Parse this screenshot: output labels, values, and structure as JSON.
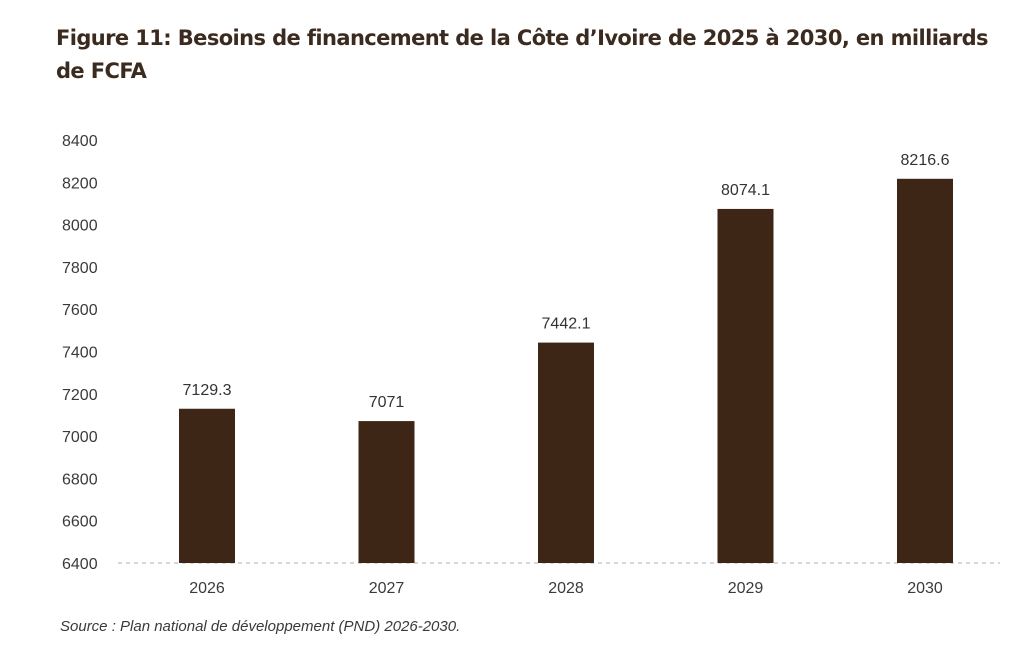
{
  "chart_data": {
    "type": "bar",
    "title": "Figure 11: Besoins de financement de la Côte d’Ivoire de 2025 à 2030, en milliards de FCFA",
    "categories": [
      "2026",
      "2027",
      "2028",
      "2029",
      "2030"
    ],
    "values": [
      7129.3,
      7071,
      7442.1,
      8074.1,
      8216.6
    ],
    "data_labels": [
      "7129.3",
      "7071",
      "7442.1",
      "8074.1",
      "8216.6"
    ],
    "ylim": [
      6400,
      8400
    ],
    "yticks": [
      "6400",
      "6600",
      "6800",
      "7000",
      "7200",
      "7400",
      "7600",
      "7800",
      "8000",
      "8200",
      "8400"
    ],
    "xlabel": "",
    "ylabel": "",
    "grid": false,
    "bar_color": "#3d2615",
    "source": "Source : Plan national de développement (PND) 2026-2030."
  }
}
